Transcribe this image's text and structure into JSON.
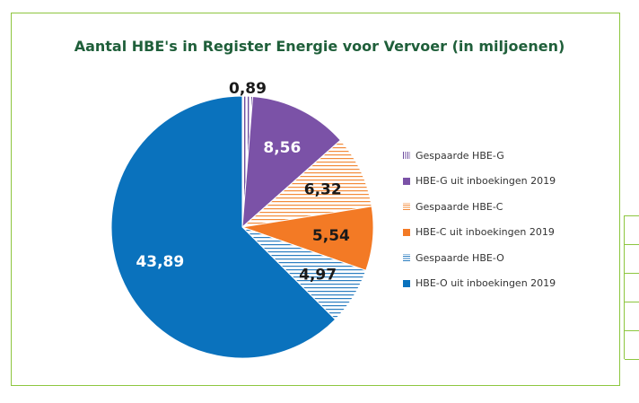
{
  "chart_data": {
    "type": "pie",
    "title": "Aantal HBE's in Register Energie voor Vervoer (in miljoenen)",
    "slices": [
      {
        "label": "Gespaarde HBE-G",
        "value": 0.89,
        "display": "0,89",
        "color": "#6f4ea0",
        "pattern": "stripe-vertical"
      },
      {
        "label": "HBE-G uit inboekingen 2019",
        "value": 8.56,
        "display": "8,56",
        "color": "#7b52a7",
        "pattern": "solid"
      },
      {
        "label": "Gespaarde HBE-C",
        "value": 6.32,
        "display": "6,32",
        "color": "#f38b3a",
        "pattern": "stripe-horizontal"
      },
      {
        "label": "HBE-C uit inboekingen 2019",
        "value": 5.54,
        "display": "5,54",
        "color": "#f37a25",
        "pattern": "solid"
      },
      {
        "label": "Gespaarde HBE-O",
        "value": 4.97,
        "display": "4,97",
        "color": "#2b7ec1",
        "pattern": "stripe-horizontal"
      },
      {
        "label": "HBE-O uit inboekingen 2019",
        "value": 43.89,
        "display": "43,89",
        "color": "#0a72bd",
        "pattern": "solid"
      }
    ],
    "legend_position": "right"
  }
}
